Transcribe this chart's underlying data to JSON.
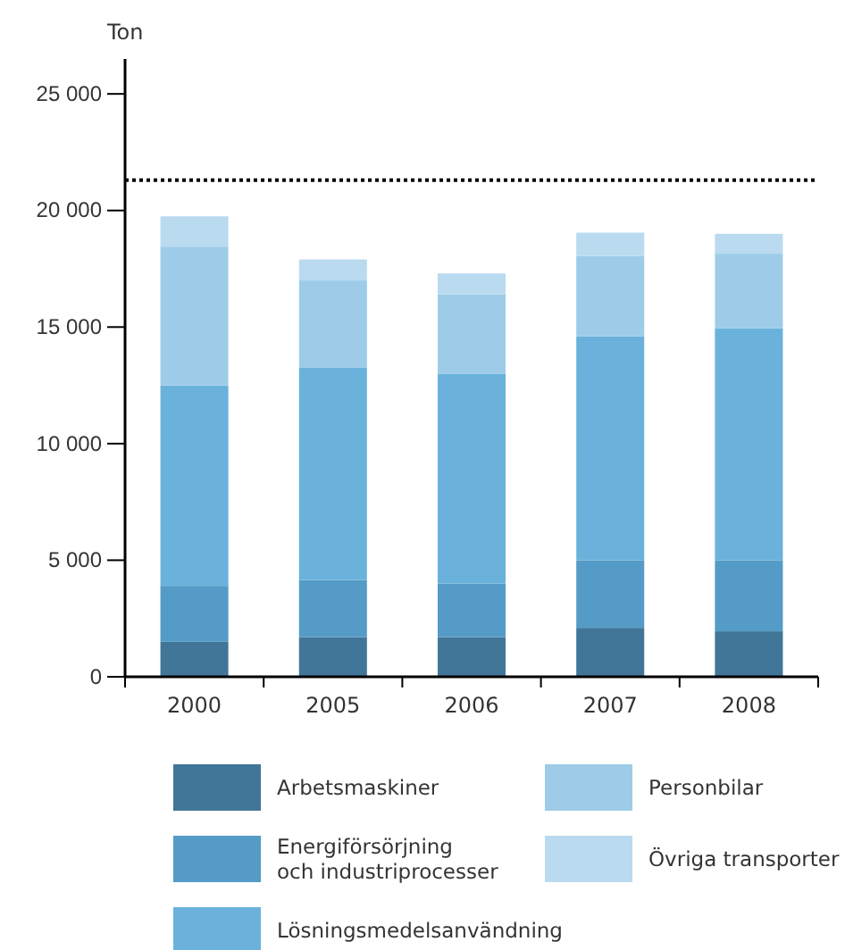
{
  "chart_data": {
    "type": "bar",
    "stacked": true,
    "ylabel": "Ton",
    "categories": [
      "2000",
      "2005",
      "2006",
      "2007",
      "2008"
    ],
    "series": [
      {
        "name": "Arbetsmaskiner",
        "color": "#427698",
        "values": [
          1500,
          1700,
          1700,
          2100,
          1950
        ]
      },
      {
        "name": "Energiförsörjning och industriprocesser",
        "color": "#559bc7",
        "values": [
          2400,
          2450,
          2300,
          2900,
          3050
        ]
      },
      {
        "name": "Lösningsmedelsanvändning",
        "color": "#6ab2dc",
        "values": [
          8600,
          9100,
          9000,
          9600,
          9950
        ]
      },
      {
        "name": "Personbilar",
        "color": "#9ecce8",
        "values": [
          5950,
          3750,
          3400,
          3450,
          3200
        ]
      },
      {
        "name": "Övriga transporter",
        "color": "#badaef",
        "values": [
          1300,
          900,
          900,
          1000,
          850
        ]
      }
    ],
    "ylim": [
      0,
      26500
    ],
    "yticks": [
      0,
      {
        "value": 5000,
        "label": "5 000"
      },
      {
        "value": 10000,
        "label": "10 000"
      },
      {
        "value": 15000,
        "label": "15 000"
      },
      {
        "value": 20000,
        "label": "20 000"
      },
      {
        "value": 25000,
        "label": "25 000"
      }
    ],
    "ref_lines": [
      {
        "axis": "y",
        "value": 21300,
        "line_style": "dotted",
        "color": "#000000"
      }
    ],
    "grid": false,
    "legend": "bottom"
  }
}
